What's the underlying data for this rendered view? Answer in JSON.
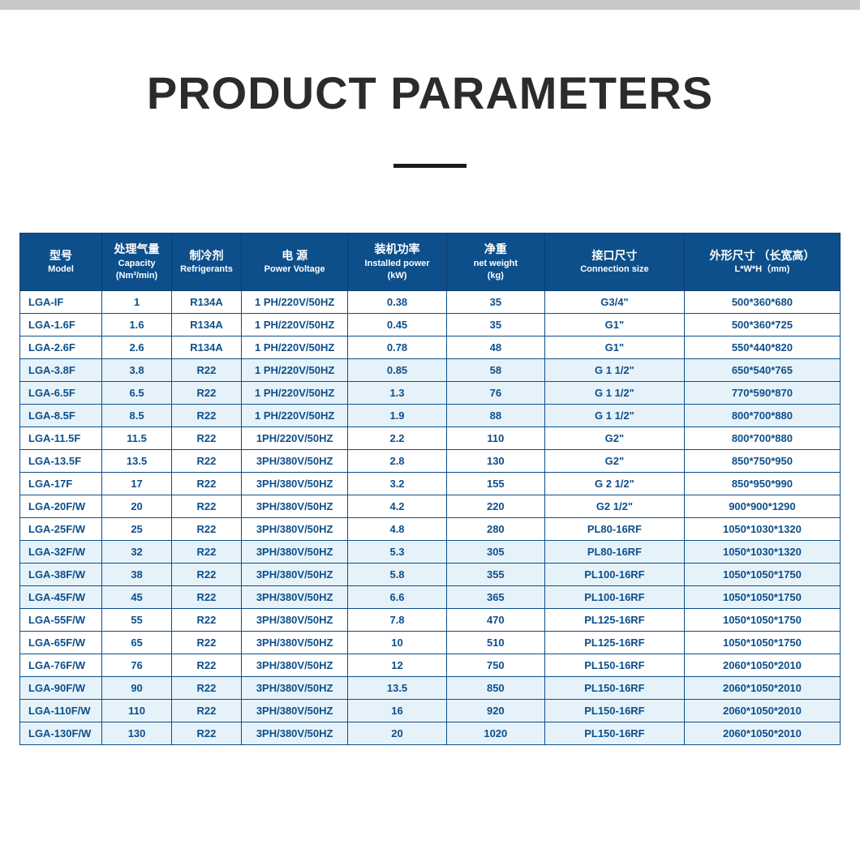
{
  "title": "PRODUCT PARAMETERS",
  "colors": {
    "header_bg": "#0d4f8b",
    "header_border": "#0a3d6b",
    "cell_text": "#0d4f8b",
    "cell_border": "#0d4f8b",
    "alt_row_bg": "#e6f2f9",
    "title_color": "#2b2b2b"
  },
  "typography": {
    "title_fontsize": 56,
    "title_weight": 900,
    "header_cn_fontsize": 14,
    "header_en_fontsize": 11,
    "cell_fontsize": 13
  },
  "columns": [
    {
      "cn": "型号",
      "en": "Model",
      "unit": ""
    },
    {
      "cn": "处理气量",
      "en": "Capacity",
      "unit": "(Nm³/min)"
    },
    {
      "cn": "制冷剂",
      "en": "Refrigerants",
      "unit": ""
    },
    {
      "cn": "电 源",
      "en": "Power Voltage",
      "unit": ""
    },
    {
      "cn": "装机功率",
      "en": "Installed power",
      "unit": "(kW)"
    },
    {
      "cn": "净重",
      "en": "net weight",
      "unit": "(kg)"
    },
    {
      "cn": "接口尺寸",
      "en": "Connection size",
      "unit": ""
    },
    {
      "cn": "外形尺寸 （长宽高）",
      "en": "L*W*H（mm)",
      "unit": ""
    }
  ],
  "rows": [
    {
      "alt": false,
      "cells": [
        "LGA-IF",
        "1",
        "R134A",
        "1 PH/220V/50HZ",
        "0.38",
        "35",
        "G3/4\"",
        "500*360*680"
      ]
    },
    {
      "alt": false,
      "cells": [
        "LGA-1.6F",
        "1.6",
        "R134A",
        "1 PH/220V/50HZ",
        "0.45",
        "35",
        "G1\"",
        "500*360*725"
      ]
    },
    {
      "alt": false,
      "cells": [
        "LGA-2.6F",
        "2.6",
        "R134A",
        "1 PH/220V/50HZ",
        "0.78",
        "48",
        "G1\"",
        "550*440*820"
      ]
    },
    {
      "alt": true,
      "cells": [
        "LGA-3.8F",
        "3.8",
        "R22",
        "1 PH/220V/50HZ",
        "0.85",
        "58",
        "G 1 1/2\"",
        "650*540*765"
      ]
    },
    {
      "alt": true,
      "cells": [
        "LGA-6.5F",
        "6.5",
        "R22",
        "1 PH/220V/50HZ",
        "1.3",
        "76",
        "G 1 1/2\"",
        "770*590*870"
      ]
    },
    {
      "alt": true,
      "cells": [
        "LGA-8.5F",
        "8.5",
        "R22",
        "1 PH/220V/50HZ",
        "1.9",
        "88",
        "G 1 1/2\"",
        "800*700*880"
      ]
    },
    {
      "alt": false,
      "cells": [
        "LGA-11.5F",
        "11.5",
        "R22",
        "1PH/220V/50HZ",
        "2.2",
        "110",
        "G2\"",
        "800*700*880"
      ]
    },
    {
      "alt": false,
      "cells": [
        "LGA-13.5F",
        "13.5",
        "R22",
        "3PH/380V/50HZ",
        "2.8",
        "130",
        "G2\"",
        "850*750*950"
      ]
    },
    {
      "alt": false,
      "cells": [
        "LGA-17F",
        "17",
        "R22",
        "3PH/380V/50HZ",
        "3.2",
        "155",
        "G 2 1/2\"",
        "850*950*990"
      ]
    },
    {
      "alt": false,
      "cells": [
        "LGA-20F/W",
        "20",
        "R22",
        "3PH/380V/50HZ",
        "4.2",
        "220",
        "G2 1/2\"",
        "900*900*1290"
      ]
    },
    {
      "alt": false,
      "cells": [
        "LGA-25F/W",
        "25",
        "R22",
        "3PH/380V/50HZ",
        "4.8",
        "280",
        "PL80-16RF",
        "1050*1030*1320"
      ]
    },
    {
      "alt": true,
      "cells": [
        "LGA-32F/W",
        "32",
        "R22",
        "3PH/380V/50HZ",
        "5.3",
        "305",
        "PL80-16RF",
        "1050*1030*1320"
      ]
    },
    {
      "alt": true,
      "cells": [
        "LGA-38F/W",
        "38",
        "R22",
        "3PH/380V/50HZ",
        "5.8",
        "355",
        "PL100-16RF",
        "1050*1050*1750"
      ]
    },
    {
      "alt": true,
      "cells": [
        "LGA-45F/W",
        "45",
        "R22",
        "3PH/380V/50HZ",
        "6.6",
        "365",
        "PL100-16RF",
        "1050*1050*1750"
      ]
    },
    {
      "alt": false,
      "cells": [
        "LGA-55F/W",
        "55",
        "R22",
        "3PH/380V/50HZ",
        "7.8",
        "470",
        "PL125-16RF",
        "1050*1050*1750"
      ]
    },
    {
      "alt": false,
      "cells": [
        "LGA-65F/W",
        "65",
        "R22",
        "3PH/380V/50HZ",
        "10",
        "510",
        "PL125-16RF",
        "1050*1050*1750"
      ]
    },
    {
      "alt": false,
      "cells": [
        "LGA-76F/W",
        "76",
        "R22",
        "3PH/380V/50HZ",
        "12",
        "750",
        "PL150-16RF",
        "2060*1050*2010"
      ]
    },
    {
      "alt": true,
      "cells": [
        "LGA-90F/W",
        "90",
        "R22",
        "3PH/380V/50HZ",
        "13.5",
        "850",
        "PL150-16RF",
        "2060*1050*2010"
      ]
    },
    {
      "alt": true,
      "cells": [
        "LGA-110F/W",
        "110",
        "R22",
        "3PH/380V/50HZ",
        "16",
        "920",
        "PL150-16RF",
        "2060*1050*2010"
      ]
    },
    {
      "alt": true,
      "cells": [
        "LGA-130F/W",
        "130",
        "R22",
        "3PH/380V/50HZ",
        "20",
        "1020",
        "PL150-16RF",
        "2060*1050*2010"
      ]
    }
  ]
}
